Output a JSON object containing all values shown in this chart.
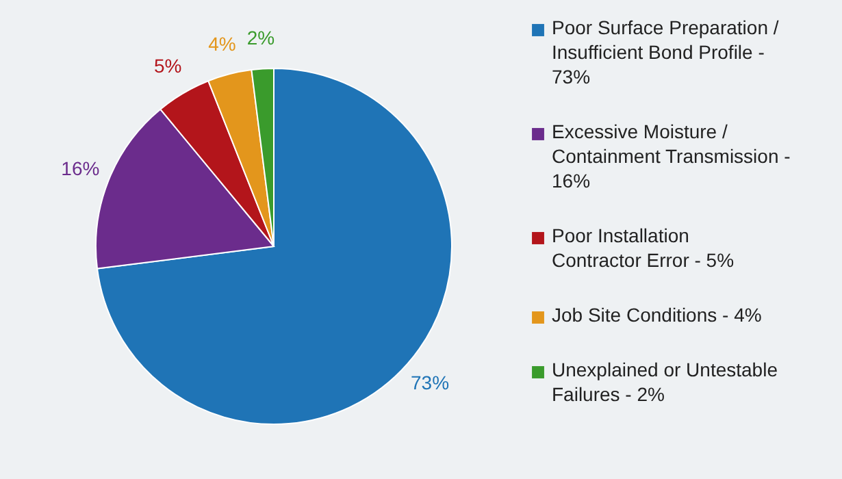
{
  "chart_data": {
    "type": "pie",
    "categories": [
      "Poor Surface Preparation / Insufficient Bond Profile - 73%",
      "Excessive Moisture / Containment Transmission - 16%",
      "Poor Installation Contractor Error - 5%",
      "Job Site Conditions - 4%",
      "Unexplained or Untestable Failures - 2%"
    ],
    "values": [
      73,
      16,
      5,
      4,
      2
    ],
    "colors": [
      "#1f74b6",
      "#6b2c8c",
      "#b3151b",
      "#e3961c",
      "#3a9b2c"
    ],
    "value_labels": [
      "73%",
      "16%",
      "5%",
      "4%",
      "2%"
    ],
    "legend": "right"
  }
}
